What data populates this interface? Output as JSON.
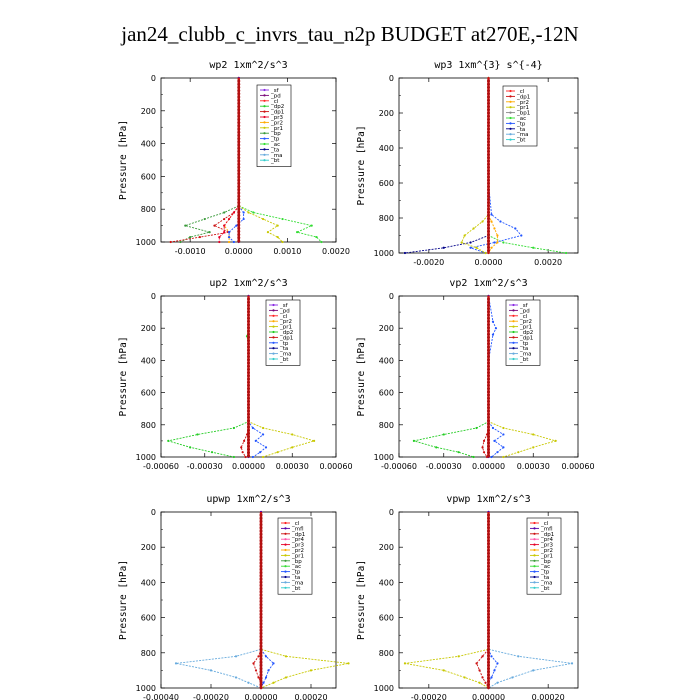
{
  "figure_title": "jan24_clubb_c_invrs_tau_n2p  BUDGET at270E,-12N",
  "colors": {
    "_sf": "#8a2be2",
    "_pd": "#7a0a7a",
    "_cl": "#ff2222",
    "_dp1": "#cc1111",
    "_dp2": "#22cc22",
    "_pr1": "#c8c800",
    "_pr2": "#ffaa00",
    "_pr3": "#e60026",
    "_pr4": "#ff55aa",
    "_tp": "#2255ff",
    "_bp": "#3a9a3a",
    "_ac": "#33dd33",
    "_ta": "#000088",
    "_ma": "#66aadd",
    "_bt": "#33cccc",
    "_mfl": "#5500aa"
  },
  "chart_data": [
    {
      "id": "wp2",
      "type": "line",
      "title": "wp2  1xm^2/s^3",
      "ylabel": "Pressure [hPa]",
      "xlim": [
        -0.0016,
        0.002
      ],
      "ylim": [
        1000,
        0
      ],
      "xticks": [
        -0.001,
        0,
        0.001,
        0.002
      ],
      "xtick_labels": [
        "-0.0010",
        "0.0000",
        "0.0010",
        "0.0020"
      ],
      "yticks": [
        0,
        200,
        400,
        600,
        800,
        1000
      ],
      "legend": [
        "_sf",
        "_pd",
        "_cl",
        "_dp2",
        "_dp1",
        "_pr3",
        "_pr2",
        "_pr1",
        "_bp",
        "_tp",
        "_ac",
        "_ta",
        "_ma",
        "_bt"
      ],
      "p": [
        0,
        200,
        400,
        600,
        780,
        820,
        860,
        900,
        940,
        970,
        1000
      ],
      "series": [
        {
          "name": "_ac",
          "values": [
            0,
            0,
            0,
            0,
            0,
            0.0003,
            0.0009,
            0.0015,
            0.0012,
            0.0016,
            0.0017
          ]
        },
        {
          "name": "_bp",
          "values": [
            0,
            0,
            0,
            0,
            0,
            -0.0003,
            -0.0007,
            -0.0011,
            -0.0006,
            -0.001,
            -0.0012
          ]
        },
        {
          "name": "_pr1",
          "values": [
            0,
            0,
            0,
            0,
            0,
            0.0002,
            0.0005,
            0.0008,
            0.0006,
            0.0008,
            0.0009
          ]
        },
        {
          "name": "_pr2",
          "values": [
            0,
            0,
            0,
            0,
            0,
            -0.0001,
            -0.0002,
            -0.0003,
            -0.0002,
            -0.0002,
            -0.0002
          ]
        },
        {
          "name": "_dp1",
          "values": [
            0,
            0,
            0,
            0,
            0,
            -0.0001,
            -0.0003,
            -0.0005,
            -0.0002,
            -0.0008,
            -0.0014
          ]
        },
        {
          "name": "_pr3",
          "values": [
            0,
            0,
            0,
            0,
            0,
            -0.0001,
            -0.0002,
            -0.0003,
            -0.0003,
            -0.0004,
            -0.0004
          ]
        },
        {
          "name": "_tp",
          "values": [
            0,
            0,
            0,
            0,
            0,
            0.0001,
            0.0001,
            -5e-05,
            -0.0002,
            -0.0002,
            -0.0001
          ]
        },
        {
          "name": "_pd",
          "values": [
            0,
            0,
            0,
            0,
            0,
            0,
            0,
            0,
            0,
            0,
            0
          ]
        }
      ]
    },
    {
      "id": "wp3",
      "type": "line",
      "title": "wp3  1xm^{3} s^{-4}",
      "ylabel": "Pressure [hPa]",
      "xlim": [
        -0.003,
        0.003
      ],
      "ylim": [
        1000,
        0
      ],
      "xticks": [
        -0.002,
        0,
        0.002
      ],
      "xtick_labels": [
        "-0.0020",
        "0.0000",
        "0.0020"
      ],
      "yticks": [
        0,
        200,
        400,
        600,
        800,
        1000
      ],
      "legend": [
        "_cl",
        "_dp1",
        "_pr2",
        "_pr1",
        "_bp1",
        "_ac",
        "_tp",
        "_ta",
        "_ma",
        "_bt"
      ],
      "p": [
        0,
        200,
        400,
        600,
        780,
        820,
        860,
        900,
        940,
        970,
        1000
      ],
      "series": [
        {
          "name": "_ta",
          "values": [
            0,
            0,
            0,
            0,
            0,
            0,
            0,
            0,
            -0.0006,
            -0.0015,
            -0.0028
          ]
        },
        {
          "name": "_ac",
          "values": [
            0,
            0,
            0,
            0,
            0,
            0,
            0,
            0,
            0.0005,
            0.0015,
            0.0026
          ]
        },
        {
          "name": "_tp",
          "values": [
            0,
            0,
            0,
            0,
            0.0001,
            0.0004,
            0.0009,
            0.0011,
            0.0002,
            -0.0006,
            -0.0001
          ]
        },
        {
          "name": "_pr1",
          "values": [
            0,
            0,
            0,
            0,
            0,
            -0.0002,
            -0.0005,
            -0.0008,
            -0.0009,
            -0.0004,
            -0.0001
          ]
        },
        {
          "name": "_pr2",
          "values": [
            0,
            0,
            0,
            0,
            0,
            0.0001,
            0.0002,
            0.0003,
            0.0003,
            0.0001,
            0
          ]
        },
        {
          "name": "_dp1",
          "values": [
            0,
            0,
            0,
            0,
            0,
            0,
            0,
            0,
            0,
            0,
            0
          ]
        }
      ]
    },
    {
      "id": "up2",
      "type": "line",
      "title": "up2  1xm^2/s^3",
      "ylabel": "Pressure [hPa]",
      "xlim": [
        -0.0006,
        0.0006
      ],
      "ylim": [
        1000,
        0
      ],
      "xticks": [
        -0.0006,
        -0.0003,
        0,
        0.0003,
        0.0006
      ],
      "xtick_labels": [
        "-0.00060",
        "-0.00030",
        "0.00000",
        "0.00030",
        "0.00060"
      ],
      "yticks": [
        0,
        200,
        400,
        600,
        800,
        1000
      ],
      "legend": [
        "_sf",
        "_pd",
        "_cl",
        "_pr2",
        "_pr1",
        "_dp2",
        "_dp1",
        "_tp",
        "_ta",
        "_ma",
        "_bt"
      ],
      "p": [
        0,
        200,
        250,
        300,
        400,
        600,
        780,
        820,
        860,
        900,
        940,
        970,
        1000
      ],
      "series": [
        {
          "name": "_dp2",
          "values": [
            0,
            0,
            -1e-05,
            0,
            0,
            0,
            0,
            -0.0001,
            -0.00035,
            -0.00055,
            -0.0004,
            -0.00025,
            -0.0001
          ]
        },
        {
          "name": "_pr1",
          "values": [
            0,
            0,
            0,
            0,
            0,
            0,
            0,
            0.0001,
            0.0003,
            0.00045,
            0.0003,
            0.0002,
            0.0001
          ]
        },
        {
          "name": "_tp",
          "values": [
            0,
            0,
            0,
            0,
            0,
            0,
            0,
            3e-05,
            0.0001,
            5e-05,
            0.00012,
            8e-05,
            3e-05
          ]
        },
        {
          "name": "_dp1",
          "values": [
            0,
            0,
            0,
            0,
            0,
            0,
            0,
            0,
            -1e-05,
            -3e-05,
            -5e-05,
            -4e-05,
            -2e-05
          ]
        },
        {
          "name": "_pd",
          "values": [
            0,
            0,
            0,
            0,
            0,
            0,
            0,
            0,
            0,
            0,
            0,
            0,
            0
          ]
        }
      ]
    },
    {
      "id": "vp2",
      "type": "line",
      "title": "vp2  1xm^2/s^3",
      "ylabel": "Pressure [hPa]",
      "xlim": [
        -0.0006,
        0.0006
      ],
      "ylim": [
        1000,
        0
      ],
      "xticks": [
        -0.0006,
        -0.0003,
        0,
        0.0003,
        0.0006
      ],
      "xtick_labels": [
        "-0.00060",
        "-0.00030",
        "0.00000",
        "0.00030",
        "0.00060"
      ],
      "yticks": [
        0,
        200,
        400,
        600,
        800,
        1000
      ],
      "legend": [
        "_sf",
        "_pd",
        "_cl",
        "_pr2",
        "_pr1",
        "_dp2",
        "_dp1",
        "_tp",
        "_ta",
        "_ma",
        "_bt"
      ],
      "p": [
        0,
        160,
        200,
        240,
        400,
        600,
        780,
        820,
        860,
        900,
        940,
        970,
        1000
      ],
      "series": [
        {
          "name": "_dp2",
          "values": [
            0,
            0,
            0,
            0,
            0,
            0,
            0,
            -8e-05,
            -0.0003,
            -0.0005,
            -0.00035,
            -0.0002,
            -0.0001
          ]
        },
        {
          "name": "_pr1",
          "values": [
            0,
            0,
            0,
            0,
            0,
            0,
            0,
            0.0001,
            0.0003,
            0.00045,
            0.0003,
            0.0002,
            0.0001
          ]
        },
        {
          "name": "_tp",
          "values": [
            0,
            3e-05,
            5e-05,
            3e-05,
            0,
            0,
            0,
            3e-05,
            0.0001,
            4e-05,
            0.0001,
            6e-05,
            2e-05
          ]
        },
        {
          "name": "_dp1",
          "values": [
            0,
            0,
            0,
            0,
            0,
            0,
            0,
            0,
            -1e-05,
            -3e-05,
            -4e-05,
            -3e-05,
            -1e-05
          ]
        },
        {
          "name": "_pd",
          "values": [
            0,
            0,
            0,
            0,
            0,
            0,
            0,
            0,
            0,
            0,
            0,
            0,
            0
          ]
        }
      ]
    },
    {
      "id": "upwp",
      "type": "line",
      "title": "upwp  1xm^2/s^3",
      "ylabel": "Pressure [hPa]",
      "xlim": [
        -0.0004,
        0.0003
      ],
      "ylim": [
        1000,
        0
      ],
      "xticks": [
        -0.0004,
        -0.0002,
        0,
        0.0002
      ],
      "xtick_labels": [
        "-0.00040",
        "-0.00020",
        "0.00000",
        "0.00020"
      ],
      "yticks": [
        0,
        200,
        400,
        600,
        800,
        1000
      ],
      "legend": [
        "_cl",
        "_mfl",
        "_dp1",
        "_pr4",
        "_pr3",
        "_pr2",
        "_pr1",
        "_bp",
        "_ac",
        "_tp",
        "_ta",
        "_ma",
        "_bt"
      ],
      "p": [
        0,
        200,
        400,
        600,
        780,
        820,
        860,
        900,
        940,
        970,
        1000
      ],
      "series": [
        {
          "name": "_ma",
          "values": [
            0,
            0,
            0,
            0,
            0,
            -0.0001,
            -0.00034,
            -0.0002,
            -0.0001,
            -5e-05,
            0
          ]
        },
        {
          "name": "_pr1",
          "values": [
            0,
            0,
            0,
            0,
            0,
            0.0001,
            0.00035,
            0.0002,
            0.0001,
            5e-05,
            0
          ]
        },
        {
          "name": "_tp",
          "values": [
            0,
            0,
            0,
            0,
            0,
            2e-05,
            5e-05,
            3e-05,
            2e-05,
            1e-05,
            0
          ]
        },
        {
          "name": "_dp1",
          "values": [
            0,
            0,
            0,
            0,
            0,
            -1e-05,
            -3e-05,
            -2e-05,
            -1e-05,
            0,
            0
          ]
        },
        {
          "name": "_mfl",
          "values": [
            0,
            0,
            0,
            0,
            0,
            0,
            0,
            0,
            0,
            0,
            0
          ]
        }
      ]
    },
    {
      "id": "vpwp",
      "type": "line",
      "title": "vpwp  1xm^2/s^3",
      "ylabel": "Pressure [hPa]",
      "xlim": [
        -0.0003,
        0.0003
      ],
      "ylim": [
        1000,
        0
      ],
      "xticks": [
        -0.0002,
        0,
        0.0002
      ],
      "xtick_labels": [
        "-0.00020",
        "0.00000",
        "0.00020"
      ],
      "yticks": [
        0,
        200,
        400,
        600,
        800,
        1000
      ],
      "legend": [
        "_cl",
        "_mfl",
        "_dp1",
        "_pr4",
        "_pr3",
        "_pr2",
        "_pr1",
        "_bp",
        "_ac",
        "_tp",
        "_ta",
        "_ma",
        "_bt"
      ],
      "p": [
        0,
        200,
        400,
        600,
        780,
        820,
        860,
        900,
        940,
        970,
        1000
      ],
      "series": [
        {
          "name": "_ma",
          "values": [
            0,
            0,
            0,
            0,
            0,
            0.0001,
            0.00028,
            0.00015,
            8e-05,
            3e-05,
            0
          ]
        },
        {
          "name": "_pr1",
          "values": [
            0,
            0,
            0,
            0,
            0,
            -0.0001,
            -0.00028,
            -0.00015,
            -8e-05,
            -3e-05,
            0
          ]
        },
        {
          "name": "_dp1",
          "values": [
            0,
            0,
            0,
            0,
            0,
            -2e-05,
            -4e-05,
            -3e-05,
            -2e-05,
            -1e-05,
            0
          ]
        },
        {
          "name": "_tp",
          "values": [
            0,
            0,
            0,
            0,
            0,
            1e-05,
            3e-05,
            2e-05,
            1e-05,
            0,
            0
          ]
        },
        {
          "name": "_mfl",
          "values": [
            0,
            0,
            0,
            0,
            0,
            0,
            0,
            0,
            0,
            0,
            0
          ]
        }
      ]
    }
  ]
}
